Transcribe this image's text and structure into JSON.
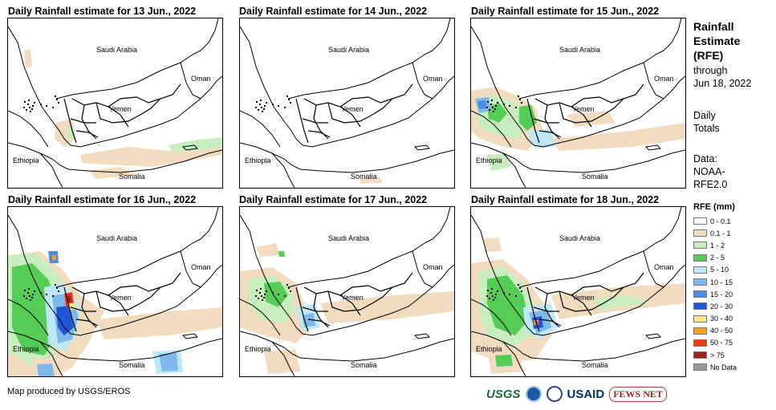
{
  "panels": [
    {
      "title": "Daily Rainfall estimate for 13 Jun., 2022",
      "pattern": "light"
    },
    {
      "title": "Daily Rainfall estimate for 14 Jun., 2022",
      "pattern": "dry"
    },
    {
      "title": "Daily Rainfall estimate for 15 Jun., 2022",
      "pattern": "moderate"
    },
    {
      "title": "Daily Rainfall estimate for 16 Jun., 2022",
      "pattern": "heavy"
    },
    {
      "title": "Daily Rainfall estimate for 17 Jun., 2022",
      "pattern": "light-moderate"
    },
    {
      "title": "Daily Rainfall estimate for 18 Jun., 2022",
      "pattern": "moderate-heavy"
    }
  ],
  "map_labels": {
    "saudi": "Saudi Arabia",
    "oman": "Oman",
    "yemen": "Yemen",
    "ethiopia": "Ethiopia",
    "somalia": "Somalia"
  },
  "sidebar": {
    "title_line1": "Rainfall",
    "title_line2": "Estimate",
    "title_line3": "(RFE)",
    "through_line1": "through",
    "through_line2": "Jun 18, 2022",
    "totals_line1": "Daily",
    "totals_line2": "Totals",
    "data_line1": "Data:",
    "data_line2": "NOAA-",
    "data_line3": "RFE2.0"
  },
  "legend": {
    "title": "RFE (mm)",
    "items": [
      {
        "label": "0 - 0.1",
        "color": "#ffffff"
      },
      {
        "label": "0.1 - 1",
        "color": "#f2dcbf"
      },
      {
        "label": "1 - 2",
        "color": "#c8eec0"
      },
      {
        "label": "2 - 5",
        "color": "#55cc55"
      },
      {
        "label": "5 - 10",
        "color": "#bfe8f5"
      },
      {
        "label": "10 - 15",
        "color": "#7fb8ea"
      },
      {
        "label": "15 - 20",
        "color": "#4d8ee0"
      },
      {
        "label": "20 - 30",
        "color": "#1f55d6"
      },
      {
        "label": "30 - 40",
        "color": "#fbe48c"
      },
      {
        "label": "40 - 50",
        "color": "#f4a21a"
      },
      {
        "label": "50 - 75",
        "color": "#f23a12"
      },
      {
        "label": "> 75",
        "color": "#a3211d"
      },
      {
        "label": "No Data",
        "color": "#999999"
      }
    ]
  },
  "credit": "Map produced by USGS/EROS",
  "logos": {
    "usgs": "USGS",
    "usaid": "USAID",
    "fews": "FEWS NET"
  }
}
